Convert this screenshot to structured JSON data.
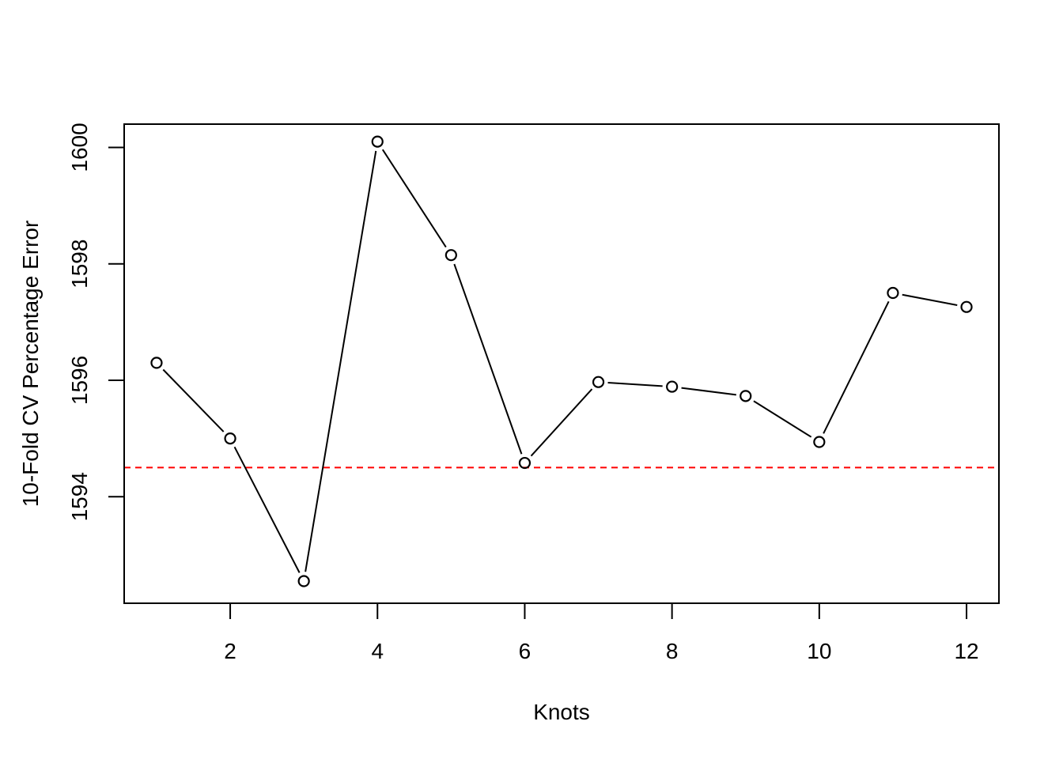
{
  "chart_data": {
    "type": "line",
    "title": "",
    "xlabel": "Knots",
    "ylabel": "10-Fold CV Percentage Error",
    "xlim": [
      0.56,
      12.44
    ],
    "ylim": [
      1592.17,
      1600.4
    ],
    "x_ticks": [
      2,
      4,
      6,
      8,
      10,
      12
    ],
    "y_ticks": [
      1594,
      1596,
      1598,
      1600
    ],
    "x": [
      1,
      2,
      3,
      4,
      5,
      6,
      7,
      8,
      9,
      10,
      11,
      12
    ],
    "series": [
      {
        "values": [
          1596.3,
          1595.0,
          1592.55,
          1600.1,
          1598.15,
          1594.58,
          1595.97,
          1595.89,
          1595.73,
          1594.94,
          1597.5,
          1597.26
        ],
        "color": "#000000",
        "marker": "open-circle"
      }
    ],
    "reference_line": {
      "y": 1594.5,
      "color": "#ff0000",
      "style": "dashed"
    },
    "grid": false,
    "legend": "none"
  }
}
